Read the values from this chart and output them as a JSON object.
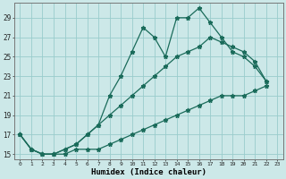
{
  "xlabel": "Humidex (Indice chaleur)",
  "bg_color": "#cce8e8",
  "grid_color": "#99cccc",
  "line_color": "#1a6b5a",
  "xlim": [
    -0.5,
    23.5
  ],
  "ylim": [
    14.5,
    30.5
  ],
  "xticks": [
    0,
    1,
    2,
    3,
    4,
    5,
    6,
    7,
    8,
    9,
    10,
    11,
    12,
    13,
    14,
    15,
    16,
    17,
    18,
    19,
    20,
    21,
    22,
    23
  ],
  "yticks": [
    15,
    17,
    19,
    21,
    23,
    25,
    27,
    29
  ],
  "line1_x": [
    0,
    1,
    2,
    3,
    4,
    5,
    6,
    7,
    8,
    9,
    10,
    11,
    12,
    13,
    14,
    15,
    16,
    17,
    18,
    19,
    20,
    21,
    22
  ],
  "line1_y": [
    17,
    15.5,
    15,
    15,
    15,
    15.5,
    15.5,
    15.5,
    16,
    16.5,
    17,
    17.5,
    18,
    18.5,
    19,
    19.5,
    20,
    20.5,
    21,
    21,
    21,
    21.5,
    22
  ],
  "line2_x": [
    0,
    1,
    2,
    3,
    4,
    5,
    6,
    7,
    8,
    9,
    10,
    11,
    12,
    13,
    14,
    15,
    16,
    17,
    18,
    19,
    20,
    21,
    22
  ],
  "line2_y": [
    17,
    15.5,
    15,
    15,
    15.5,
    16,
    17,
    18,
    21,
    23,
    25.5,
    28,
    27,
    25,
    29,
    29,
    30,
    28.5,
    27,
    25.5,
    25,
    24,
    22.5
  ],
  "line3_x": [
    0,
    1,
    2,
    3,
    4,
    5,
    6,
    7,
    8,
    9,
    10,
    11,
    12,
    13,
    14,
    15,
    16,
    17,
    18,
    19,
    20,
    21,
    22
  ],
  "line3_y": [
    17,
    15.5,
    15,
    15,
    15.5,
    16,
    17,
    18,
    19,
    20,
    21,
    22,
    23,
    24,
    25,
    25.5,
    26,
    27,
    26.5,
    26,
    25.5,
    24.5,
    22.5
  ]
}
